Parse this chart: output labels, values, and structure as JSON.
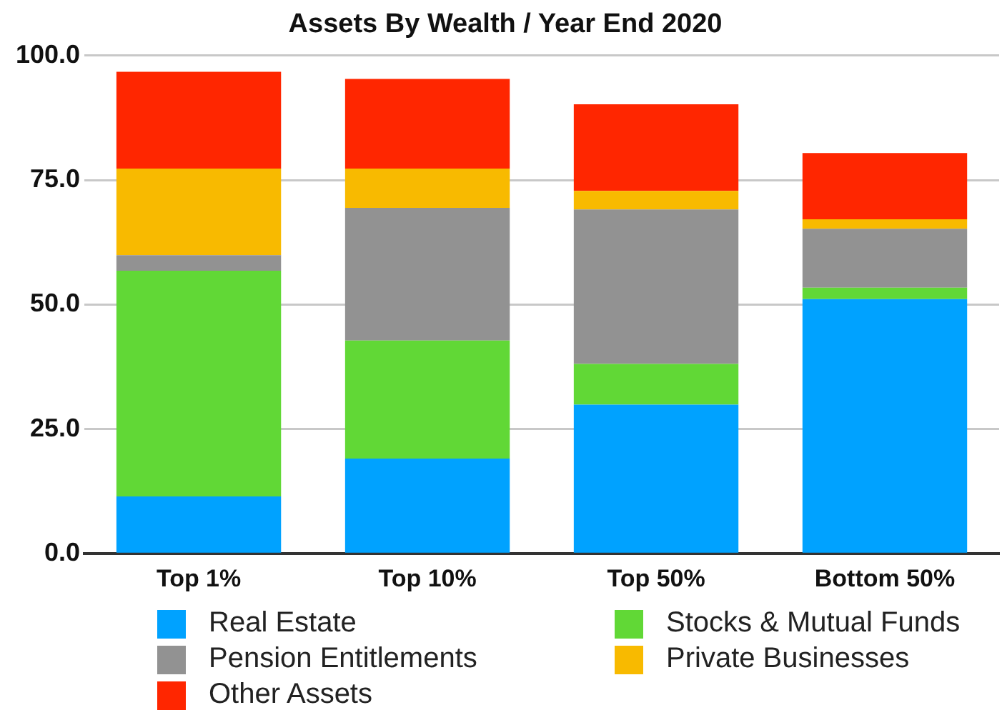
{
  "chart_data": {
    "type": "bar",
    "title": "Assets By Wealth / Year End 2020",
    "stacked": true,
    "categories": [
      "Top 1%",
      "Top 10%",
      "Top 50%",
      "Bottom 50%"
    ],
    "series": [
      {
        "name": "Real Estate",
        "color": "#00a2ff",
        "values": [
          11.5,
          19.1,
          29.9,
          51.1
        ]
      },
      {
        "name": "Stocks & Mutual Funds",
        "color": "#61d836",
        "values": [
          45.3,
          23.7,
          8.2,
          2.3
        ]
      },
      {
        "name": "Pension Entitlements",
        "color": "#929292",
        "values": [
          3.1,
          26.6,
          31.0,
          11.8
        ]
      },
      {
        "name": "Private Businesses",
        "color": "#f8ba00",
        "values": [
          17.4,
          7.9,
          3.7,
          1.9
        ]
      },
      {
        "name": "Other Assets",
        "color": "#ff2600",
        "values": [
          19.4,
          18.0,
          17.4,
          13.3
        ]
      }
    ],
    "ylim": [
      0,
      100
    ],
    "yticks": [
      {
        "value": 0,
        "label": "0.0"
      },
      {
        "value": 25,
        "label": "25.0"
      },
      {
        "value": 50,
        "label": "50.0"
      },
      {
        "value": 75,
        "label": "75.0"
      },
      {
        "value": 100,
        "label": "100.0"
      }
    ],
    "grid": "y",
    "legend": "bottom"
  }
}
